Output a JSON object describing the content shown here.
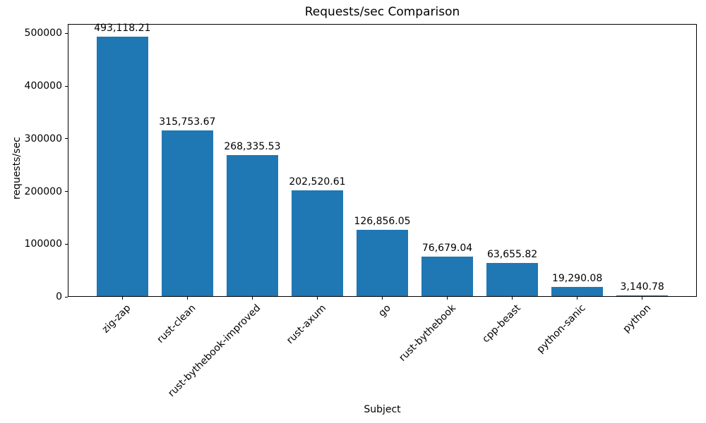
{
  "chart_data": {
    "type": "bar",
    "title": "Requests/sec Comparison",
    "xlabel": "Subject",
    "ylabel": "requests/sec",
    "categories": [
      "zig-zap",
      "rust-clean",
      "rust-bythebook-improved",
      "rust-axum",
      "go",
      "rust-bythebook",
      "cpp-beast",
      "python-sanic",
      "python"
    ],
    "values": [
      493118.21,
      315753.67,
      268335.53,
      202520.61,
      126856.05,
      76679.04,
      63655.82,
      19290.08,
      3140.78
    ],
    "value_labels": [
      "493,118.21",
      "315,753.67",
      "268,335.53",
      "202,520.61",
      "126,856.05",
      "76,679.04",
      "63,655.82",
      "19,290.08",
      "3,140.78"
    ],
    "yticks": [
      0,
      100000,
      200000,
      300000,
      400000,
      500000
    ],
    "ytick_labels": [
      "0",
      "100000",
      "200000",
      "300000",
      "400000",
      "500000"
    ],
    "ylim": [
      0,
      517774
    ],
    "bar_color": "#1f77b4",
    "grid": false,
    "legend": null,
    "x_tick_rotation_deg": 45
  }
}
